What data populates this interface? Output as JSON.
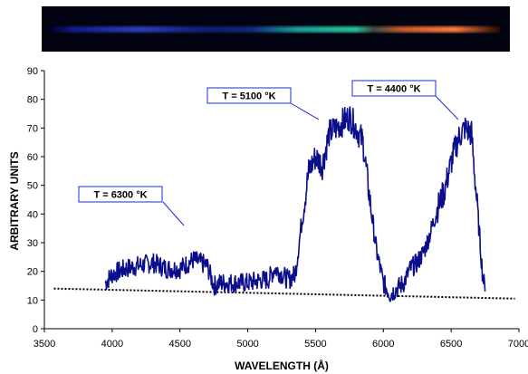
{
  "chart_data": {
    "type": "line",
    "title": "",
    "xlabel": "WAVELENGTH (Å)",
    "ylabel": "ARBITRARY UNITS",
    "xlim": [
      3500,
      7000
    ],
    "ylim": [
      0,
      90
    ],
    "x_ticks": [
      "3500",
      "4000",
      "4500",
      "5000",
      "5500",
      "6000",
      "6500",
      "7000"
    ],
    "y_ticks": [
      "0",
      "10",
      "20",
      "30",
      "40",
      "50",
      "60",
      "70",
      "80",
      "90"
    ],
    "grid": false,
    "legend": "none",
    "series": [
      {
        "kind": "spectrum",
        "color": "#0b0e8a",
        "x": [
          3950,
          4000,
          4100,
          4200,
          4300,
          4400,
          4500,
          4600,
          4650,
          4700,
          4750,
          4800,
          4900,
          5000,
          5100,
          5150,
          5200,
          5300,
          5350,
          5400,
          5450,
          5500,
          5550,
          5600,
          5650,
          5700,
          5750,
          5800,
          5850,
          5900,
          5950,
          6000,
          6050,
          6100,
          6150,
          6200,
          6250,
          6300,
          6350,
          6400,
          6450,
          6500,
          6550,
          6600,
          6650,
          6700,
          6730,
          6750
        ],
        "y": [
          16,
          19,
          21,
          22,
          23,
          21,
          21,
          24,
          23,
          22,
          15,
          16,
          16,
          16,
          17,
          17,
          21,
          17,
          19,
          38,
          55,
          60,
          57,
          68,
          70,
          72,
          74,
          70,
          65,
          45,
          27,
          16,
          12,
          14,
          16,
          21,
          23,
          27,
          34,
          42,
          48,
          58,
          66,
          70,
          68,
          38,
          20,
          13
        ]
      },
      {
        "kind": "baseline",
        "color": "#000000",
        "style": "dotted",
        "x": [
          3570,
          6970
        ],
        "y": [
          14,
          10.5
        ]
      }
    ],
    "annotations": [
      {
        "text": "T = 6300 °K",
        "target_x": 4570,
        "target_y": 35
      },
      {
        "text": "T = 5100 °K",
        "target_x": 5530,
        "target_y": 73
      },
      {
        "text": "T = 4400 °K",
        "target_x": 6570,
        "target_y": 72
      }
    ]
  },
  "spectrum_strip": {
    "colors": [
      "#1c1f9a",
      "#2a58c8",
      "#1fb89a",
      "#e07030",
      "#ff8040"
    ]
  }
}
